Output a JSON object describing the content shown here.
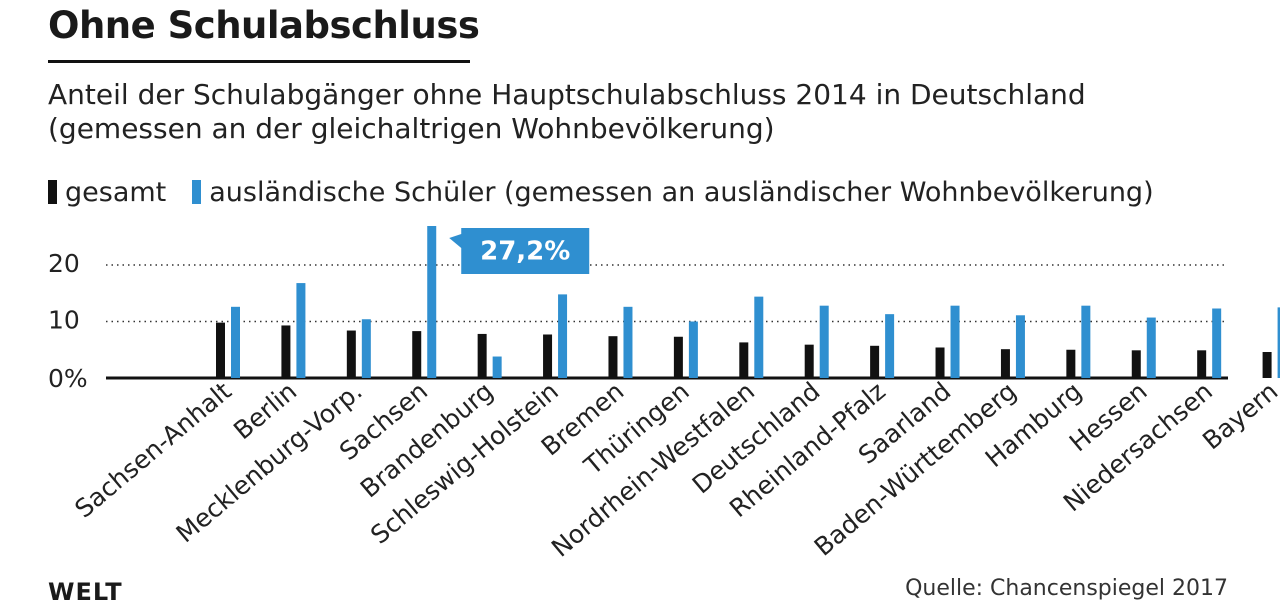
{
  "header": {
    "title": "Ohne Schulabschluss",
    "subtitle_line1": "Anteil der Schulabgänger ohne Hauptschulabschluss 2014 in Deutschland",
    "subtitle_line2": "(gemessen an der gleichaltrigen Wohnbevölkerung)"
  },
  "legend": {
    "total_label": "gesamt",
    "foreign_label": "ausländische Schüler (gemessen an ausländischer Wohnbevölkerung)"
  },
  "colors": {
    "total": "#111111",
    "foreign": "#2f8fd0",
    "callout_bg": "#2f8fd0",
    "callout_text": "#ffffff",
    "grid": "#333333"
  },
  "chart_data": {
    "type": "bar",
    "title": "Ohne Schulabschluss",
    "subtitle": "Anteil der Schulabgänger ohne Hauptschulabschluss 2014 in Deutschland (gemessen an der gleichaltrigen Wohnbevölkerung)",
    "categories": [
      "Sachsen-Anhalt",
      "Berlin",
      "Mecklenburg-Vorp.",
      "Sachsen",
      "Brandenburg",
      "Schleswig-Holstein",
      "Bremen",
      "Thüringen",
      "Nordrhein-Westfalen",
      "Deutschland",
      "Rheinland-Pfalz",
      "Saarland",
      "Baden-Württemberg",
      "Hamburg",
      "Hessen",
      "Niedersachsen",
      "Bayern"
    ],
    "series": [
      {
        "name": "gesamt",
        "values": [
          9.8,
          9.3,
          8.4,
          8.3,
          7.8,
          7.7,
          7.4,
          7.3,
          6.3,
          5.9,
          5.7,
          5.4,
          5.1,
          5.0,
          4.9,
          4.9,
          4.6
        ]
      },
      {
        "name": "ausländische Schüler (gemessen an ausländischer Wohnbevölkerung)",
        "values": [
          12.6,
          16.8,
          10.4,
          27.2,
          3.8,
          14.8,
          12.6,
          10.0,
          14.4,
          12.8,
          11.3,
          12.8,
          11.1,
          12.8,
          10.7,
          12.3,
          12.5
        ]
      }
    ],
    "ylim": [
      0,
      25
    ],
    "yticks": [
      0,
      10,
      20
    ],
    "ytick_labels": [
      "0%",
      "10",
      "20"
    ],
    "grid": true,
    "callout": {
      "category": "Sachsen",
      "label": "27,2%"
    }
  },
  "footer": {
    "logo": "WELT",
    "source": "Quelle: Chancenspiegel 2017"
  }
}
